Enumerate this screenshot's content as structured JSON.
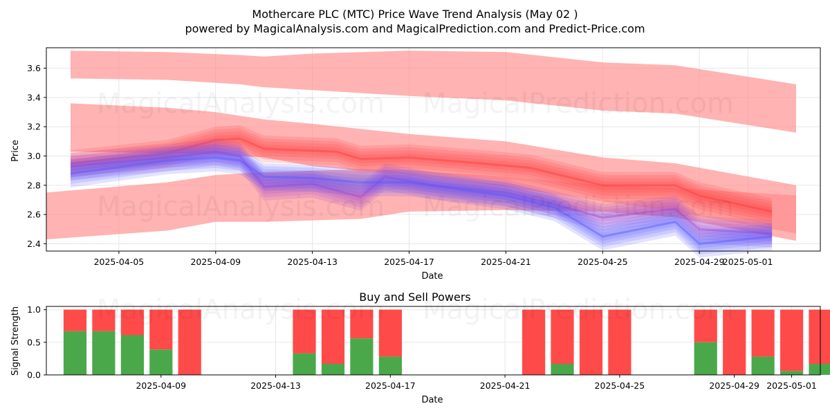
{
  "chart_data": [
    {
      "type": "area",
      "title": "Mothercare PLC (MTC) Price Wave Trend Analysis (May 02 )",
      "subtitle": "powered by MagicalAnalysis.com and MagicalPrediction.com and Predict-Price.com",
      "xlabel": "Date",
      "ylabel": "Price",
      "ylim": [
        2.35,
        3.74
      ],
      "xlim": [
        "2025-04-02",
        "2025-05-04"
      ],
      "yticks": [
        "2.4",
        "2.6",
        "2.8",
        "3.0",
        "3.2",
        "3.4",
        "3.6"
      ],
      "xticks": [
        "2025-04-05",
        "2025-04-09",
        "2025-04-13",
        "2025-04-17",
        "2025-04-21",
        "2025-04-25",
        "2025-04-29",
        "2025-05-01"
      ],
      "grid": true,
      "bands": [
        {
          "name": "upper trend band",
          "color": "#ff8a8a",
          "x": [
            "2025-04-03",
            "2025-04-07",
            "2025-04-10",
            "2025-04-11",
            "2025-04-13",
            "2025-04-17",
            "2025-04-21",
            "2025-04-25",
            "2025-04-28",
            "2025-05-03"
          ],
          "upper": [
            3.72,
            3.71,
            3.69,
            3.68,
            3.7,
            3.72,
            3.71,
            3.64,
            3.62,
            3.49
          ],
          "lower": [
            3.53,
            3.52,
            3.49,
            3.47,
            3.45,
            3.41,
            3.38,
            3.31,
            3.29,
            3.16
          ]
        },
        {
          "name": "middle trend band",
          "color": "#ff8a8a",
          "x": [
            "2025-04-03",
            "2025-04-07",
            "2025-04-09",
            "2025-04-11",
            "2025-04-13",
            "2025-04-17",
            "2025-04-21",
            "2025-04-25",
            "2025-04-28",
            "2025-05-03"
          ],
          "upper": [
            3.36,
            3.33,
            3.3,
            3.25,
            3.22,
            3.15,
            3.1,
            2.99,
            2.95,
            2.8
          ],
          "lower": [
            3.03,
            3.02,
            3.01,
            2.99,
            2.93,
            2.87,
            2.79,
            2.69,
            2.62,
            2.47
          ]
        },
        {
          "name": "lower trend band",
          "color": "#ff8a8a",
          "x": [
            "2025-04-02",
            "2025-04-07",
            "2025-04-09",
            "2025-04-11",
            "2025-04-13",
            "2025-04-15",
            "2025-04-17",
            "2025-04-21",
            "2025-04-25",
            "2025-04-28",
            "2025-05-03"
          ],
          "upper": [
            2.75,
            2.82,
            2.87,
            2.89,
            2.9,
            2.91,
            2.9,
            2.86,
            2.8,
            2.78,
            2.73
          ],
          "lower": [
            2.43,
            2.49,
            2.55,
            2.55,
            2.56,
            2.57,
            2.62,
            2.63,
            2.62,
            2.58,
            2.42
          ]
        }
      ],
      "series": [
        {
          "name": "red wave",
          "color": "#ff3b3b",
          "x": [
            "2025-04-03",
            "2025-04-07",
            "2025-04-09",
            "2025-04-10",
            "2025-04-11",
            "2025-04-14",
            "2025-04-15",
            "2025-04-17",
            "2025-04-20",
            "2025-04-22",
            "2025-04-25",
            "2025-04-28",
            "2025-04-29",
            "2025-05-02"
          ],
          "values": [
            2.95,
            3.02,
            3.11,
            3.12,
            3.05,
            3.03,
            2.98,
            2.99,
            2.95,
            2.92,
            2.8,
            2.8,
            2.73,
            2.62
          ]
        },
        {
          "name": "purple wave",
          "color": "#a04ad0",
          "x": [
            "2025-04-03",
            "2025-04-07",
            "2025-04-09",
            "2025-04-10",
            "2025-04-11",
            "2025-04-13",
            "2025-04-15",
            "2025-04-16",
            "2025-04-18",
            "2025-04-21",
            "2025-04-23",
            "2025-04-25",
            "2025-04-28",
            "2025-04-29",
            "2025-05-02"
          ],
          "values": [
            2.93,
            2.99,
            3.03,
            3.0,
            2.79,
            2.81,
            2.72,
            2.86,
            2.8,
            2.75,
            2.67,
            2.58,
            2.64,
            2.5,
            2.47
          ]
        },
        {
          "name": "blue wave",
          "color": "#5a5aff",
          "x": [
            "2025-04-03",
            "2025-04-07",
            "2025-04-09",
            "2025-04-10",
            "2025-04-11",
            "2025-04-13",
            "2025-04-15",
            "2025-04-17",
            "2025-04-21",
            "2025-04-23",
            "2025-04-25",
            "2025-04-28",
            "2025-04-29",
            "2025-05-02"
          ],
          "values": [
            2.88,
            2.97,
            2.99,
            2.97,
            2.86,
            2.85,
            2.82,
            2.82,
            2.73,
            2.65,
            2.45,
            2.55,
            2.4,
            2.45
          ]
        }
      ]
    },
    {
      "type": "bar",
      "stacked": true,
      "title": "Buy and Sell Powers",
      "xlabel": "Date",
      "ylabel": "Signal Strength",
      "ylim": [
        0,
        1.05
      ],
      "xlim": [
        "2025-04-05",
        "2025-05-02"
      ],
      "yticks": [
        "0.0",
        "0.5",
        "1.0"
      ],
      "xticks": [
        "2025-04-09",
        "2025-04-13",
        "2025-04-17",
        "2025-04-21",
        "2025-04-25",
        "2025-04-29",
        "2025-05-01"
      ],
      "grid": true,
      "categories": [
        "2025-04-06",
        "2025-04-07",
        "2025-04-08",
        "2025-04-09",
        "2025-04-10",
        "2025-04-14",
        "2025-04-15",
        "2025-04-16",
        "2025-04-17",
        "2025-04-22",
        "2025-04-23",
        "2025-04-24",
        "2025-04-25",
        "2025-04-28",
        "2025-04-29",
        "2025-04-30",
        "2025-05-01",
        "2025-05-02"
      ],
      "series": [
        {
          "name": "Buy",
          "color": "#4aa84a",
          "values": [
            0.67,
            0.67,
            0.61,
            0.39,
            0.0,
            0.33,
            0.17,
            0.56,
            0.28,
            0.0,
            0.17,
            0.0,
            0.0,
            0.5,
            0.0,
            0.28,
            0.06,
            0.17
          ]
        },
        {
          "name": "Sell",
          "color": "#ff4a4a",
          "values": [
            0.33,
            0.33,
            0.39,
            0.61,
            1.0,
            0.67,
            0.83,
            0.44,
            0.72,
            1.0,
            0.83,
            1.0,
            1.0,
            0.5,
            1.0,
            0.72,
            0.94,
            0.83
          ]
        }
      ]
    }
  ],
  "watermarks": [
    "MagicalAnalysis.com",
    "MagicalPrediction.com"
  ]
}
